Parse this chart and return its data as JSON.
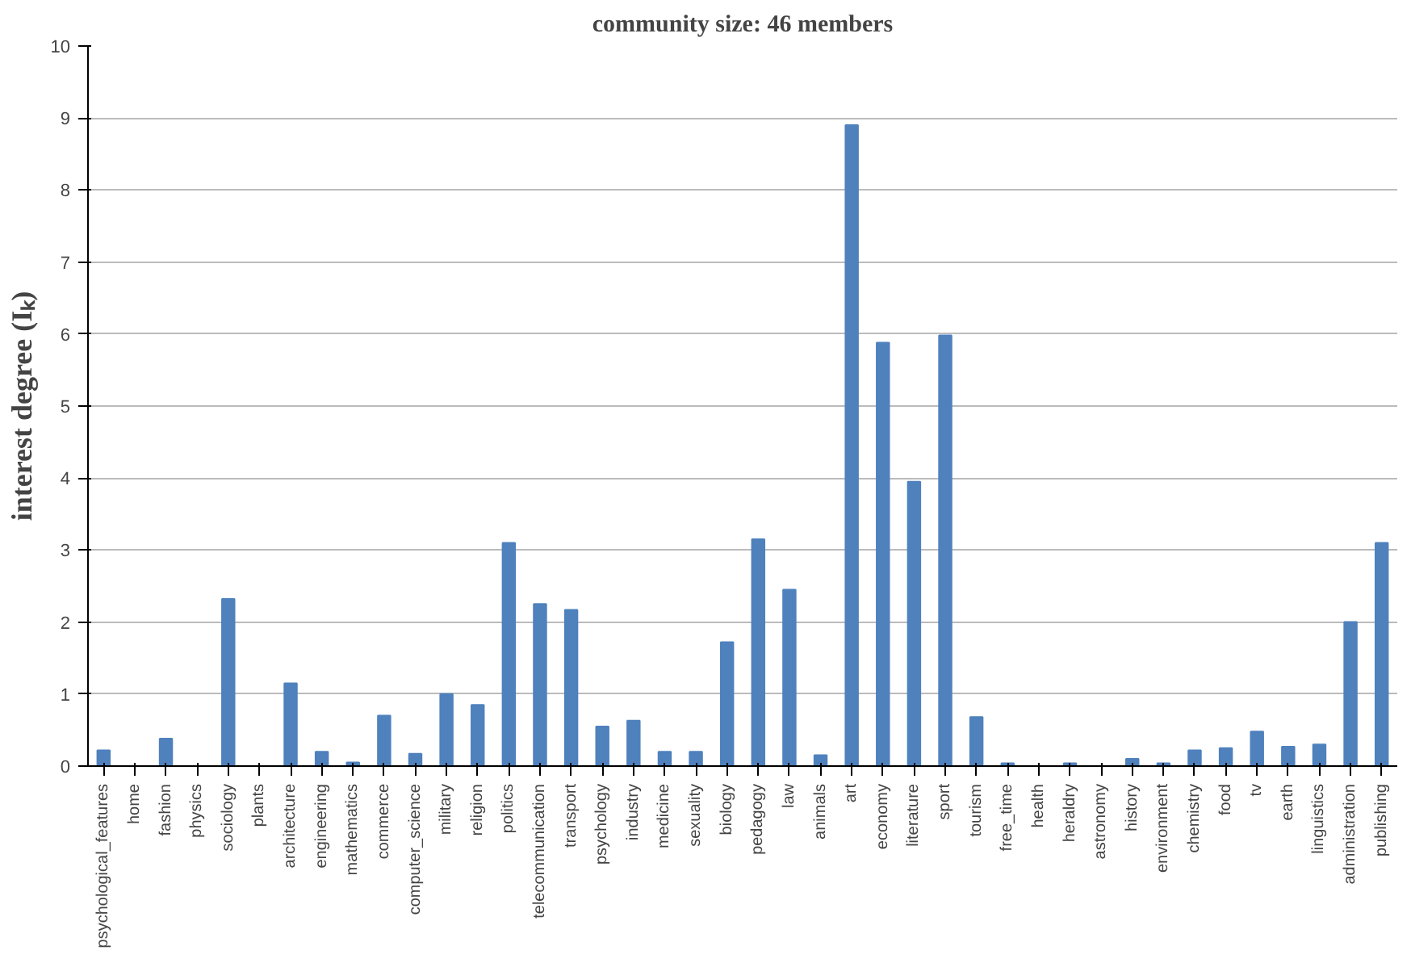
{
  "chart_data": {
    "type": "bar",
    "title": "community size: 46 members",
    "ylabel": "interest degree (Iₖ)",
    "categories": [
      "psychological_features",
      "home",
      "fashion",
      "physics",
      "sociology",
      "plants",
      "architecture",
      "engineering",
      "mathematics",
      "commerce",
      "computer_science",
      "military",
      "religion",
      "politics",
      "telecommunication",
      "transport",
      "psychology",
      "industry",
      "medicine",
      "sexuality",
      "biology",
      "pedagogy",
      "law",
      "animals",
      "art",
      "economy",
      "literature",
      "sport",
      "tourism",
      "free_time",
      "health",
      "heraldry",
      "astronomy",
      "history",
      "environment",
      "chemistry",
      "food",
      "tv",
      "earth",
      "linguistics",
      "administration",
      "publishing"
    ],
    "values": [
      0.22,
      0,
      0.38,
      0,
      2.32,
      0,
      1.15,
      0.2,
      0.05,
      0.7,
      0.17,
      1.0,
      0.85,
      3.1,
      2.25,
      2.17,
      0.55,
      0.63,
      0.2,
      0.2,
      1.72,
      3.15,
      2.45,
      0.15,
      8.9,
      5.88,
      3.95,
      5.98,
      0.68,
      0.04,
      0,
      0.04,
      0,
      0.1,
      0.04,
      0.22,
      0.25,
      0.48,
      0.27,
      0.3,
      2.0,
      3.1
    ],
    "color": "#4f81bd",
    "ylim": [
      0,
      10
    ],
    "yticks": [
      0,
      1,
      2,
      3,
      4,
      5,
      6,
      7,
      8,
      9,
      10
    ],
    "grid": "y"
  }
}
